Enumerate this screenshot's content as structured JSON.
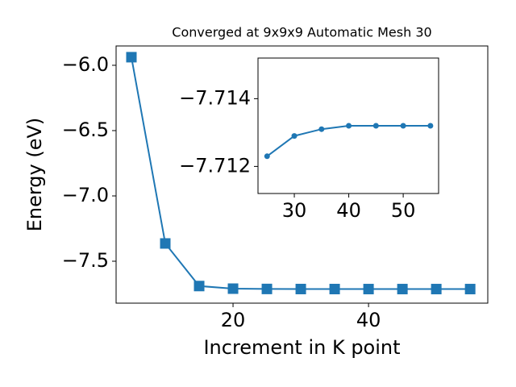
{
  "chart_data": [
    {
      "type": "line",
      "title": "Converged at 9x9x9 Automatic Mesh 30",
      "x_label": "Increment in K point",
      "y_label": "Energy (eV)",
      "x": [
        5,
        10,
        15,
        20,
        25,
        30,
        35,
        40,
        45,
        50,
        55
      ],
      "series": [
        {
          "name": "Energy",
          "color": "#1f77b4",
          "marker": "square",
          "values": [
            -5.938,
            -7.364,
            -7.69,
            -7.71,
            -7.7123,
            -7.7129,
            -7.7131,
            -7.7132,
            -7.7132,
            -7.7132,
            -7.7132
          ]
        }
      ],
      "xlim": [
        2.74,
        57.6
      ],
      "ylim": [
        -7.821,
        -5.852
      ],
      "xticks": [
        20,
        40
      ],
      "yticks": [
        {
          "value": -6.0,
          "label": "−6.0"
        },
        {
          "value": -6.5,
          "label": "−6.5"
        },
        {
          "value": -7.0,
          "label": "−7.0"
        },
        {
          "value": -7.5,
          "label": "−7.5"
        }
      ],
      "grid": false
    },
    {
      "type": "line",
      "x": [
        25,
        30,
        35,
        40,
        45,
        50,
        55
      ],
      "series": [
        {
          "name": "Energy",
          "color": "#1f77b4",
          "marker": "circle",
          "values": [
            -7.7123,
            -7.7129,
            -7.7131,
            -7.7132,
            -7.7132,
            -7.7132,
            -7.7132
          ]
        }
      ],
      "xlim": [
        23.33,
        56.5
      ],
      "ylim": [
        -7.7112,
        -7.7152
      ],
      "xticks": [
        30,
        40,
        50
      ],
      "yticks": [
        {
          "value": -7.714,
          "label": "−7.714"
        },
        {
          "value": -7.712,
          "label": "−7.712"
        }
      ],
      "grid": false
    }
  ]
}
